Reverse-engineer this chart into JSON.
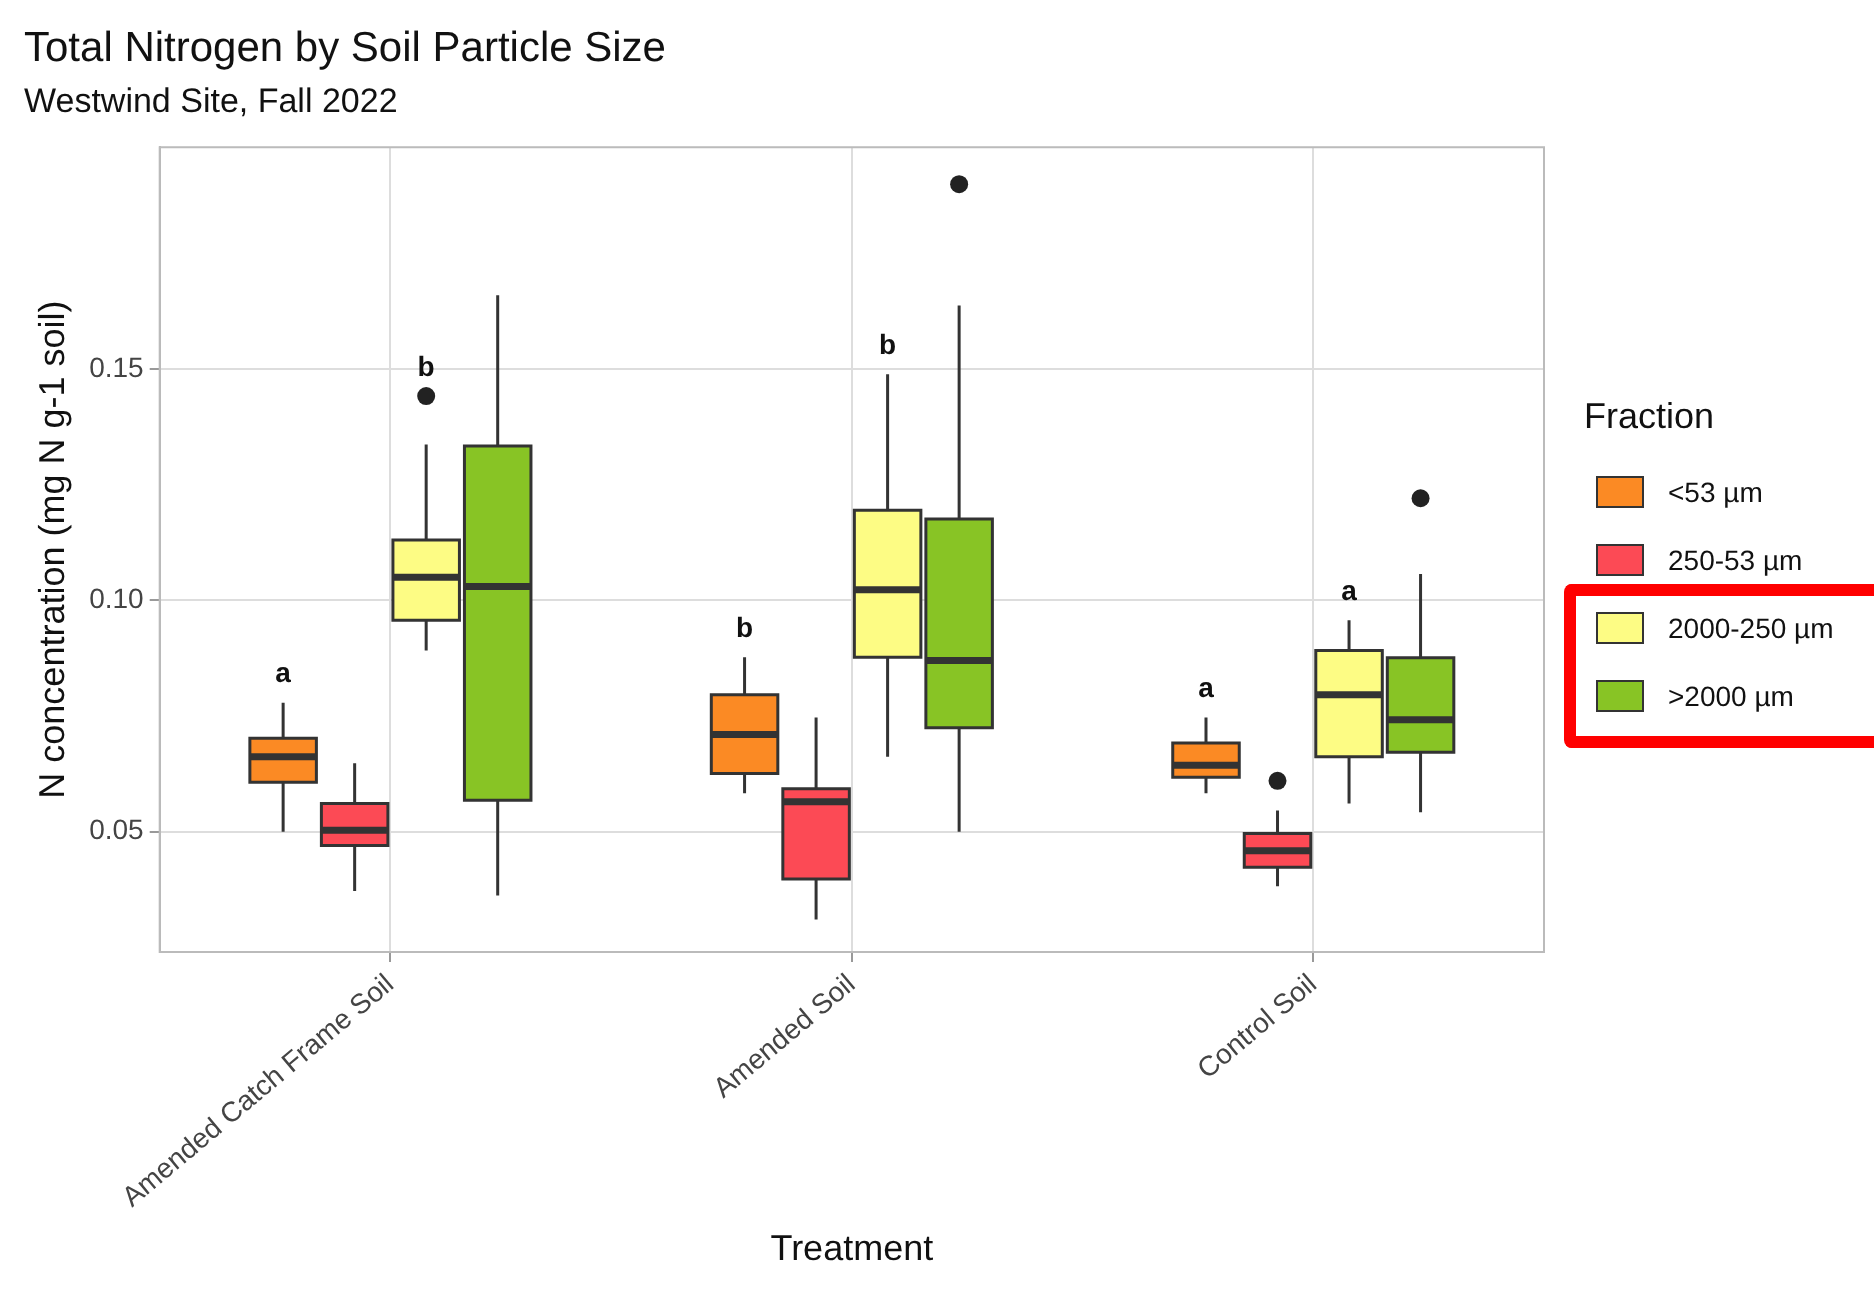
{
  "chart_data": {
    "type": "box",
    "title": "Total Nitrogen by Soil Particle Size",
    "subtitle": "Westwind Site, Fall 2022",
    "xlabel": "Treatment",
    "ylabel": "N concentration (mg N g-1 soil)",
    "legend_title": "Fraction",
    "legend": "right",
    "grid": true,
    "categories": [
      "Amended Catch Frame Soil",
      "Amended Soil",
      "Control Soil"
    ],
    "ylim": [
      0.024,
      0.198
    ],
    "yticks": [
      0.05,
      {
        "value": 0.1,
        "label": "0.10"
      },
      0.15
    ],
    "series": [
      {
        "name": "<53 µm",
        "color": "#fb8a24",
        "value_labels": [
          "a",
          "b",
          "a"
        ],
        "boxes": [
          {
            "low": 0.05,
            "q1": 0.0607,
            "median": 0.0662,
            "q3": 0.0702,
            "high": 0.0779
          },
          {
            "low": 0.0583,
            "q1": 0.0626,
            "median": 0.071,
            "q3": 0.0796,
            "high": 0.0877
          },
          {
            "low": 0.0583,
            "q1": 0.0618,
            "median": 0.0644,
            "q3": 0.0692,
            "high": 0.0747
          }
        ]
      },
      {
        "name": "250-53 µm",
        "color": "#fc4a55",
        "boxes": [
          {
            "low": 0.0372,
            "q1": 0.047,
            "median": 0.0503,
            "q3": 0.0561,
            "high": 0.0648
          },
          {
            "low": 0.031,
            "q1": 0.0398,
            "median": 0.0565,
            "q3": 0.0593,
            "high": 0.0747
          },
          {
            "low": 0.0382,
            "q1": 0.0423,
            "median": 0.0459,
            "q3": 0.0496,
            "high": 0.0546,
            "outliers": [
              0.061
            ]
          }
        ]
      },
      {
        "name": "2000-250 µm",
        "color": "#fdfc84",
        "value_labels": [
          "b",
          "b",
          "a"
        ],
        "boxes": [
          {
            "low": 0.0892,
            "q1": 0.0957,
            "median": 0.105,
            "q3": 0.1131,
            "high": 0.1337,
            "outliers": [
              0.1442
            ]
          },
          {
            "low": 0.0662,
            "q1": 0.0877,
            "median": 0.1023,
            "q3": 0.1195,
            "high": 0.1489
          },
          {
            "low": 0.0561,
            "q1": 0.0662,
            "median": 0.0796,
            "q3": 0.0892,
            "high": 0.0957
          }
        ]
      },
      {
        "name": ">2000 µm",
        "color": "#88c425",
        "boxes": [
          {
            "low": 0.0362,
            "q1": 0.0568,
            "median": 0.103,
            "q3": 0.1334,
            "high": 0.166
          },
          {
            "low": 0.05,
            "q1": 0.0725,
            "median": 0.087,
            "q3": 0.1176,
            "high": 0.1638,
            "outliers": [
              0.19
            ]
          },
          {
            "low": 0.0542,
            "q1": 0.0672,
            "median": 0.0742,
            "q3": 0.0876,
            "high": 0.1057,
            "outliers": [
              0.1221
            ]
          }
        ]
      }
    ]
  }
}
